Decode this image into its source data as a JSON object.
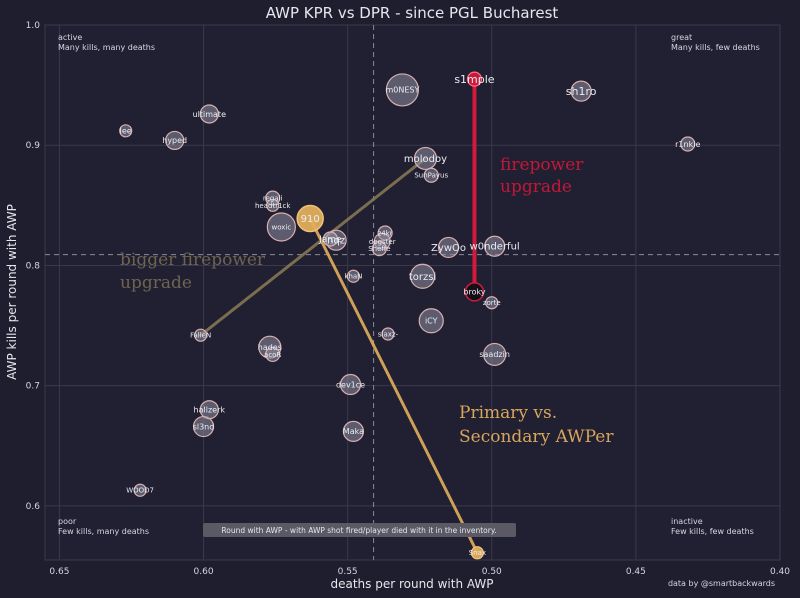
{
  "chart_data": {
    "type": "scatter",
    "title": "AWP KPR vs DPR - since PGL Bucharest",
    "xlabel": "deaths per round with AWP",
    "ylabel": "AWP kills per round with AWP",
    "xlim": [
      0.655,
      0.4
    ],
    "ylim": [
      0.555,
      1.0
    ],
    "x_reversed": true,
    "xticks": [
      "0.65",
      "0.60",
      "0.55",
      "0.50",
      "0.45",
      "0.40"
    ],
    "yticks": [
      "0.6",
      "0.7",
      "0.8",
      "0.9",
      "1.0"
    ],
    "grid": true,
    "x_ref": 0.541,
    "y_ref": 0.809,
    "colors": {
      "background": "#1f1e2e",
      "grid": "#3a394c",
      "ref_line": "#8a8a96",
      "bubble": "#8e8ea0",
      "bubble_edge": "#d9b0b0",
      "red": "#d11a3c",
      "gold": "#e2ae5c",
      "olive": "#8b7c55",
      "text": "#e6e6ee"
    },
    "points": [
      {
        "name": "s1mple",
        "x": 0.506,
        "y": 0.955,
        "r": 7,
        "style": "red",
        "fs": 11
      },
      {
        "name": "sh1ro",
        "x": 0.469,
        "y": 0.945,
        "r": 10,
        "fs": 11
      },
      {
        "name": "m0NESY",
        "x": 0.531,
        "y": 0.946,
        "r": 16,
        "fs": 8
      },
      {
        "name": "ultimate",
        "x": 0.598,
        "y": 0.926,
        "r": 9,
        "fs": 8
      },
      {
        "name": "lee",
        "x": 0.627,
        "y": 0.912,
        "r": 6,
        "fs": 8
      },
      {
        "name": "hyped",
        "x": 0.61,
        "y": 0.904,
        "r": 9,
        "fs": 8
      },
      {
        "name": "r1nkle",
        "x": 0.432,
        "y": 0.901,
        "r": 7,
        "fs": 8
      },
      {
        "name": "molodoy",
        "x": 0.523,
        "y": 0.889,
        "r": 11,
        "fs": 10
      },
      {
        "name": "SunPayus",
        "x": 0.521,
        "y": 0.875,
        "r": 7,
        "fs": 7
      },
      {
        "name": "regali",
        "x": 0.576,
        "y": 0.856,
        "r": 7,
        "fs": 7
      },
      {
        "name": "headtr1ck",
        "x": 0.576,
        "y": 0.85,
        "r": 6,
        "fs": 7
      },
      {
        "name": "woxic",
        "x": 0.573,
        "y": 0.832,
        "r": 14,
        "fs": 7
      },
      {
        "name": "910",
        "x": 0.563,
        "y": 0.839,
        "r": 13,
        "style": "gold",
        "fs": 10
      },
      {
        "name": "nqz",
        "x": 0.554,
        "y": 0.821,
        "r": 10,
        "fs": 10
      },
      {
        "name": "Jame",
        "x": 0.556,
        "y": 0.822,
        "r": 7,
        "fs": 9
      },
      {
        "name": "z4kr",
        "x": 0.537,
        "y": 0.827,
        "r": 7,
        "fs": 7
      },
      {
        "name": "degster",
        "x": 0.538,
        "y": 0.82,
        "r": 8,
        "fs": 7
      },
      {
        "name": "Sheffe",
        "x": 0.539,
        "y": 0.814,
        "r": 7,
        "fs": 7
      },
      {
        "name": "ZywOo",
        "x": 0.515,
        "y": 0.815,
        "r": 10,
        "fs": 10
      },
      {
        "name": "w0nderful",
        "x": 0.499,
        "y": 0.816,
        "r": 10,
        "fs": 10
      },
      {
        "name": "khaN",
        "x": 0.548,
        "y": 0.791,
        "r": 6,
        "fs": 7
      },
      {
        "name": "torzsi",
        "x": 0.524,
        "y": 0.791,
        "r": 12,
        "fs": 10
      },
      {
        "name": "broky",
        "x": 0.506,
        "y": 0.778,
        "r": 9,
        "style": "dark",
        "fs": 8
      },
      {
        "name": "zorte",
        "x": 0.5,
        "y": 0.769,
        "r": 6,
        "fs": 7
      },
      {
        "name": "iCY",
        "x": 0.521,
        "y": 0.754,
        "r": 12,
        "fs": 8
      },
      {
        "name": "slaxz-",
        "x": 0.536,
        "y": 0.743,
        "r": 6,
        "fs": 7
      },
      {
        "name": "FalleN",
        "x": 0.601,
        "y": 0.742,
        "r": 6,
        "fs": 7
      },
      {
        "name": "hades",
        "x": 0.577,
        "y": 0.732,
        "r": 11,
        "fs": 8
      },
      {
        "name": "acoR",
        "x": 0.576,
        "y": 0.726,
        "r": 7,
        "fs": 7
      },
      {
        "name": "saadzin",
        "x": 0.499,
        "y": 0.726,
        "r": 11,
        "fs": 8
      },
      {
        "name": "dev1ce",
        "x": 0.549,
        "y": 0.701,
        "r": 10,
        "fs": 8
      },
      {
        "name": "hallzerk",
        "x": 0.598,
        "y": 0.68,
        "r": 9,
        "fs": 8
      },
      {
        "name": "sl3nd",
        "x": 0.6,
        "y": 0.666,
        "r": 10,
        "fs": 8
      },
      {
        "name": "Maka",
        "x": 0.548,
        "y": 0.662,
        "r": 10,
        "fs": 8
      },
      {
        "name": "WOOD7",
        "x": 0.622,
        "y": 0.613,
        "r": 6,
        "fs": 7
      },
      {
        "name": "Snax",
        "x": 0.505,
        "y": 0.561,
        "r": 6,
        "style": "gold_small",
        "fs": 7
      }
    ],
    "lines": [
      {
        "from": [
          0.506,
          0.778
        ],
        "to": [
          0.506,
          0.955
        ],
        "color": "red",
        "width": 4
      },
      {
        "from": [
          0.563,
          0.839
        ],
        "to": [
          0.505,
          0.561
        ],
        "color": "gold",
        "width": 3
      },
      {
        "from": [
          0.601,
          0.742
        ],
        "to": [
          0.523,
          0.889
        ],
        "color": "olive",
        "width": 3
      }
    ],
    "quadrants": {
      "top_left": {
        "line1": "active",
        "line2": "Many kills, many deaths"
      },
      "top_right": {
        "line1": "great",
        "line2": "Many kills, few deaths"
      },
      "bottom_left": {
        "line1": "poor",
        "line2": "Few kills, many deaths"
      },
      "bottom_right": {
        "line1": "inactive",
        "line2": "Few kills, few deaths"
      }
    },
    "annotations": {
      "firepower_line1": "firepower",
      "firepower_line2": "upgrade",
      "bigger_line1": "bigger firepower",
      "bigger_line2": "upgrade",
      "primary_line1": "Primary vs.",
      "primary_line2": "Secondary AWPer"
    },
    "footnote": "Round with AWP - with AWP shot fired/player died with it in the inventory.",
    "credit": "data by @smartbackwards"
  }
}
